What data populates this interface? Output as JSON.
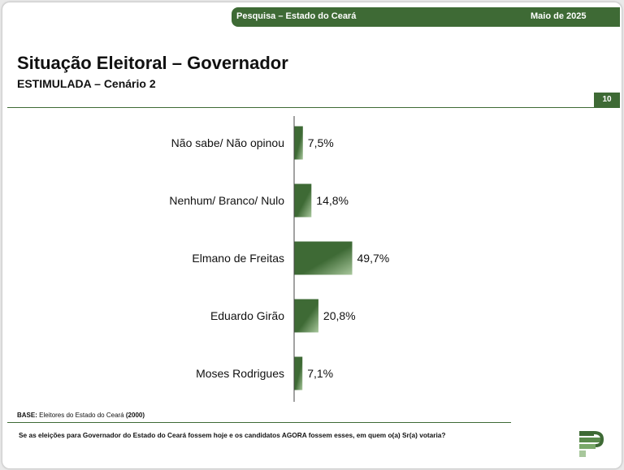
{
  "header": {
    "survey_label": "Pesquisa – Estado do Ceará",
    "date_label": "Maio de 2025"
  },
  "title": "Situação Eleitoral – Governador",
  "subtitle": "ESTIMULADA – Cenário 2",
  "page_number": "10",
  "footer": {
    "base_label": "BASE:",
    "base_text": "Eleitores do Estado do Ceará",
    "base_count": "(2000)",
    "question": "Se as eleições para Governador do Estado do Ceará fossem hoje e os candidatos AGORA fossem esses, em quem o(a) Sr(a) votaria?"
  },
  "colors": {
    "bar_dark": "#3e6a35",
    "bar_light": "#a8c79c",
    "accent": "#3e6a35"
  },
  "logo_icon": "brand-logo-icon",
  "chart_data": {
    "type": "bar",
    "orientation": "horizontal",
    "categories": [
      "Não sabe/ Não opinou",
      "Nenhum/ Branco/ Nulo",
      "Elmano de Freitas",
      "Eduardo Girão",
      "Moses Rodrigues"
    ],
    "values": [
      7.5,
      14.8,
      49.7,
      20.8,
      7.1
    ],
    "value_labels": [
      "7,5%",
      "14,8%",
      "49,7%",
      "20,8%",
      "7,1%"
    ],
    "unit": "%",
    "xlim": [
      0,
      100
    ],
    "grid": false,
    "legend": "none"
  }
}
